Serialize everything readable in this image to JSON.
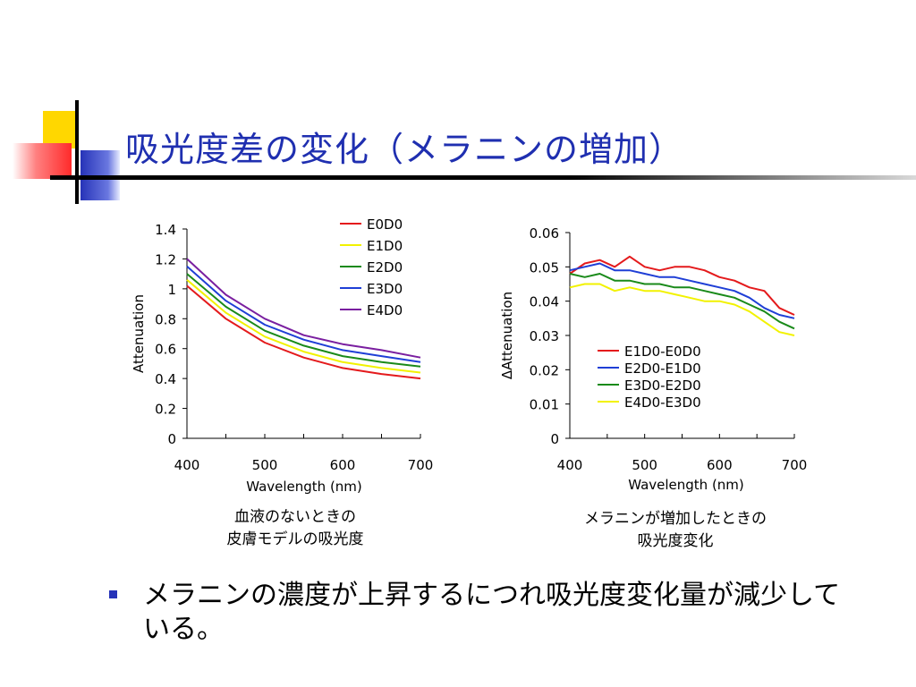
{
  "slide": {
    "title": "吸光度差の変化（メラニンの増加）",
    "bullet": "メラニンの濃度が上昇するにつれ吸光度変化量が減少している。",
    "bullet_color": "#2633b8",
    "title_color": "#1f2fb0"
  },
  "captions": {
    "left": [
      "血液のないときの",
      "皮膚モデルの吸光度"
    ],
    "right": [
      "メラニンが増加したときの",
      "吸光度変化"
    ]
  },
  "chart_data": [
    {
      "type": "line",
      "xlabel": "Wavelength (nm)",
      "ylabel": "Attenuation",
      "xlim": [
        400,
        700
      ],
      "ylim": [
        0,
        1.4
      ],
      "xticks": [
        "400",
        "500",
        "600",
        "700"
      ],
      "yticks": [
        "0",
        "0.2",
        "0.4",
        "0.6",
        "0.8",
        "1",
        "1.2",
        "1.4"
      ],
      "legend_position": "top-right",
      "x": [
        400,
        450,
        500,
        550,
        600,
        650,
        700
      ],
      "series": [
        {
          "name": "E0D0",
          "color": "#e41a1c",
          "values": [
            1.02,
            0.8,
            0.64,
            0.54,
            0.47,
            0.43,
            0.4
          ]
        },
        {
          "name": "E1D0",
          "color": "#f2f200",
          "values": [
            1.06,
            0.84,
            0.68,
            0.58,
            0.51,
            0.47,
            0.44
          ]
        },
        {
          "name": "E2D0",
          "color": "#1a8a1a",
          "values": [
            1.1,
            0.88,
            0.72,
            0.62,
            0.55,
            0.51,
            0.48
          ]
        },
        {
          "name": "E3D0",
          "color": "#1f3fd6",
          "values": [
            1.15,
            0.92,
            0.76,
            0.66,
            0.59,
            0.55,
            0.51
          ]
        },
        {
          "name": "E4D0",
          "color": "#7a1fa0",
          "values": [
            1.2,
            0.96,
            0.8,
            0.69,
            0.63,
            0.59,
            0.54
          ]
        }
      ]
    },
    {
      "type": "line",
      "xlabel": "Wavelength (nm)",
      "ylabel": "ΔAttenuation",
      "xlim": [
        400,
        700
      ],
      "ylim": [
        0,
        0.06
      ],
      "xticks": [
        "400",
        "500",
        "600",
        "700"
      ],
      "yticks": [
        "0",
        "0.01",
        "0.02",
        "0.03",
        "0.04",
        "0.05",
        "0.06"
      ],
      "legend_position": "center-right",
      "x": [
        400,
        420,
        440,
        460,
        480,
        500,
        520,
        540,
        560,
        580,
        600,
        620,
        640,
        660,
        680,
        700
      ],
      "series": [
        {
          "name": "E1D0-E0D0",
          "color": "#e41a1c",
          "values": [
            0.048,
            0.051,
            0.052,
            0.05,
            0.053,
            0.05,
            0.049,
            0.05,
            0.05,
            0.049,
            0.047,
            0.046,
            0.044,
            0.043,
            0.038,
            0.036
          ]
        },
        {
          "name": "E2D0-E1D0",
          "color": "#1f3fd6",
          "values": [
            0.049,
            0.05,
            0.051,
            0.049,
            0.049,
            0.048,
            0.047,
            0.047,
            0.046,
            0.045,
            0.044,
            0.043,
            0.041,
            0.038,
            0.036,
            0.035
          ]
        },
        {
          "name": "E3D0-E2D0",
          "color": "#1a8a1a",
          "values": [
            0.048,
            0.047,
            0.048,
            0.046,
            0.046,
            0.045,
            0.045,
            0.044,
            0.044,
            0.043,
            0.042,
            0.041,
            0.039,
            0.037,
            0.034,
            0.032
          ]
        },
        {
          "name": "E4D0-E3D0",
          "color": "#f2f200",
          "values": [
            0.044,
            0.045,
            0.045,
            0.043,
            0.044,
            0.043,
            0.043,
            0.042,
            0.041,
            0.04,
            0.04,
            0.039,
            0.037,
            0.034,
            0.031,
            0.03
          ]
        }
      ]
    }
  ]
}
